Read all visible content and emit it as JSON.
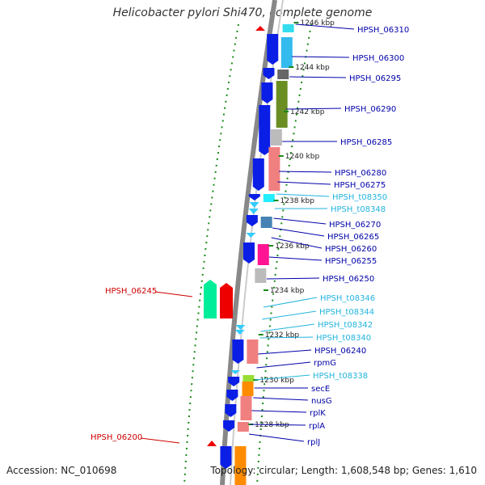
{
  "title": "Helicobacter pylori Shi470, complete genome",
  "footer": {
    "accession": "Accession: NC_010698",
    "summary": "Topology: circular; Length: 1,608,548 bp; Genes: 1,610"
  },
  "colors": {
    "cds": "#0a1ee6",
    "trna": "#33ccff",
    "forward_label": "#cc0000",
    "reverse_label": "#0000aa",
    "trna_label": "#22b4dd",
    "backbone": "#888888",
    "dotted_ring": "#1a8a1a"
  },
  "ticks": [
    {
      "label": "1246 kbp"
    },
    {
      "label": "1244 kbp"
    },
    {
      "label": "1242 kbp"
    },
    {
      "label": "1240 kbp"
    },
    {
      "label": "1238 kbp"
    },
    {
      "label": "1236 kbp"
    },
    {
      "label": "1234 kbp"
    },
    {
      "label": "1232 kbp"
    },
    {
      "label": "1230 kbp"
    },
    {
      "label": "1228 kbp"
    }
  ],
  "genes_right": [
    {
      "name": "HPSH_06310",
      "type": "cds"
    },
    {
      "name": "HPSH_06300",
      "type": "cds"
    },
    {
      "name": "HPSH_06295",
      "type": "cds"
    },
    {
      "name": "HPSH_06290",
      "type": "cds"
    },
    {
      "name": "HPSH_06285",
      "type": "cds"
    },
    {
      "name": "HPSH_06280",
      "type": "cds"
    },
    {
      "name": "HPSH_06275",
      "type": "cds"
    },
    {
      "name": "HPSH_t08350",
      "type": "trna"
    },
    {
      "name": "HPSH_t08348",
      "type": "trna"
    },
    {
      "name": "HPSH_06270",
      "type": "cds"
    },
    {
      "name": "HPSH_06265",
      "type": "cds"
    },
    {
      "name": "HPSH_06260",
      "type": "cds"
    },
    {
      "name": "HPSH_06255",
      "type": "cds"
    },
    {
      "name": "HPSH_06250",
      "type": "cds"
    },
    {
      "name": "HPSH_t08346",
      "type": "trna"
    },
    {
      "name": "HPSH_t08344",
      "type": "trna"
    },
    {
      "name": "HPSH_t08342",
      "type": "trna"
    },
    {
      "name": "HPSH_t08340",
      "type": "trna"
    },
    {
      "name": "HPSH_06240",
      "type": "cds"
    },
    {
      "name": "rpmG",
      "type": "cds"
    },
    {
      "name": "HPSH_t08338",
      "type": "trna"
    },
    {
      "name": "secE",
      "type": "cds"
    },
    {
      "name": "nusG",
      "type": "cds"
    },
    {
      "name": "rplK",
      "type": "cds"
    },
    {
      "name": "rplA",
      "type": "cds"
    },
    {
      "name": "rplJ",
      "type": "cds"
    }
  ],
  "genes_left": [
    {
      "name": "HPSH_06245"
    },
    {
      "name": "HPSH_06200"
    }
  ]
}
